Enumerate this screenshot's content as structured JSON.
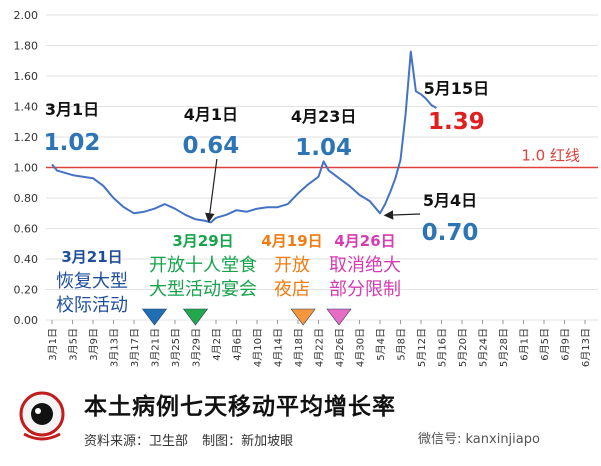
{
  "chart_data": {
    "type": "line",
    "title": "本土病例七天移动平均增长率",
    "ylim": [
      0,
      2.0
    ],
    "yticks": [
      "0.00",
      "0.20",
      "0.40",
      "0.60",
      "0.80",
      "1.00",
      "1.20",
      "1.40",
      "1.60",
      "1.80",
      "2.00"
    ],
    "x_tick_labels": [
      "3月1日",
      "3月5日",
      "3月9日",
      "3月13日",
      "3月17日",
      "3月21日",
      "3月25日",
      "3月29日",
      "4月2日",
      "4月6日",
      "4月10日",
      "4月14日",
      "4月18日",
      "4月22日",
      "4月26日",
      "4月30日",
      "5月4日",
      "5月8日",
      "5月12日",
      "5月16日",
      "5月20日",
      "5月24日",
      "5月28日",
      "6月1日",
      "6月5日",
      "6月9日",
      "6月13日"
    ],
    "grid": true,
    "line_color": "#4472C4",
    "reference_line": {
      "value": 1.0,
      "label": "1.0 红线",
      "color": "#E0403A"
    },
    "series": [
      {
        "x": [
          "3月1日",
          "3月2日",
          "3月3日",
          "3月5日",
          "3月7日",
          "3月9日",
          "3月11日",
          "3月13日",
          "3月15日",
          "3月17日",
          "3月19日",
          "3月21日",
          "3月23日",
          "3月25日",
          "3月27日",
          "3月29日",
          "3月31日",
          "4月1日",
          "4月2日",
          "4月4日",
          "4月6日",
          "4月8日",
          "4月10日",
          "4月12日",
          "4月14日",
          "4月16日",
          "4月18日",
          "4月20日",
          "4月22日",
          "4月23日",
          "4月24日",
          "4月26日",
          "4月28日",
          "4月30日",
          "5月2日",
          "5月3日",
          "5月4日",
          "5月5日",
          "5月6日",
          "5月7日",
          "5月8日",
          "5月9日",
          "5月10日",
          "5月11日",
          "5月12日",
          "5月13日",
          "5月14日",
          "5月15日"
        ],
        "values": [
          1.02,
          0.98,
          0.97,
          0.95,
          0.94,
          0.93,
          0.88,
          0.8,
          0.74,
          0.7,
          0.71,
          0.73,
          0.76,
          0.73,
          0.69,
          0.66,
          0.65,
          0.64,
          0.67,
          0.69,
          0.72,
          0.71,
          0.73,
          0.74,
          0.74,
          0.76,
          0.83,
          0.89,
          0.94,
          1.04,
          0.98,
          0.93,
          0.88,
          0.82,
          0.78,
          0.74,
          0.7,
          0.76,
          0.84,
          0.93,
          1.05,
          1.35,
          1.76,
          1.5,
          1.48,
          1.45,
          1.41,
          1.39
        ]
      }
    ],
    "annotations": [
      {
        "date": "3月1日",
        "value": "1.02",
        "value_color": "#2E75B6"
      },
      {
        "date": "4月1日",
        "value": "0.64",
        "value_color": "#2E75B6"
      },
      {
        "date": "4月23日",
        "value": "1.04",
        "value_color": "#2E75B6"
      },
      {
        "date": "5月4日",
        "value": "0.70",
        "value_color": "#2E75B6"
      },
      {
        "date": "5月15日",
        "value": "1.39",
        "value_color": "#E02020"
      }
    ],
    "events": [
      {
        "date": "3月21日",
        "lines": [
          "恢复大型",
          "校际活动"
        ],
        "date_color": "#1F4E9C",
        "text_color": "#1F4E9C",
        "marker_color": "#1F6FB5",
        "x_date": "3月21日"
      },
      {
        "date": "3月29日",
        "lines": [
          "开放十人堂食",
          "大型活动宴会"
        ],
        "date_color": "#16A34A",
        "text_color": "#16A34A",
        "marker_color": "#22A84A",
        "x_date": "3月29日"
      },
      {
        "date": "4月19日",
        "lines": [
          "开放",
          "夜店"
        ],
        "date_color": "#F07C12",
        "text_color": "#F07C12",
        "marker_color": "#F5963B",
        "x_date": "4月19日"
      },
      {
        "date": "4月26日",
        "lines": [
          "取消绝大",
          "部分限制"
        ],
        "date_color": "#D53CB4",
        "text_color": "#D53CB4",
        "marker_color": "#E66CC4",
        "x_date": "4月26日"
      }
    ]
  },
  "footer": {
    "title": "本土病例七天移动平均增长率",
    "source": "资料来源：卫生部",
    "maker": "制图：新加坡眼",
    "wechat": "微信号: kanxinjiapo",
    "logo_text": "新加坡眼"
  }
}
